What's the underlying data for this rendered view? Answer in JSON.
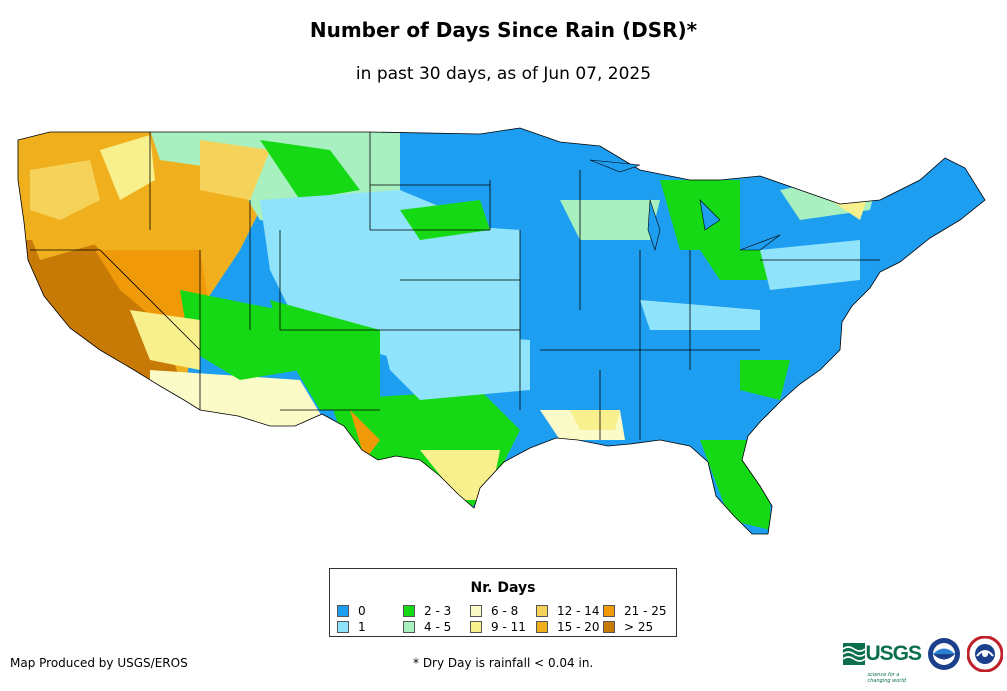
{
  "title": "Number of Days Since Rain (DSR)*",
  "subtitle": "in past 30 days, as of Jun 07, 2025",
  "legend": {
    "title": "Nr. Days",
    "items": [
      {
        "label": "0",
        "color": "#1e9ef0"
      },
      {
        "label": "1",
        "color": "#8fe3fa"
      },
      {
        "label": "2 - 3",
        "color": "#15d915"
      },
      {
        "label": "4 - 5",
        "color": "#a8f0c0"
      },
      {
        "label": "6 - 8",
        "color": "#fbfbc8"
      },
      {
        "label": "9 - 11",
        "color": "#f8f08c"
      },
      {
        "label": "12 - 14",
        "color": "#f5d35a"
      },
      {
        "label": "15 - 20",
        "color": "#f0b01e"
      },
      {
        "label": "21 - 25",
        "color": "#f09a0a"
      },
      {
        "label": "> 25",
        "color": "#c77a06"
      }
    ]
  },
  "credit": "Map Produced by USGS/EROS",
  "footnote": "* Dry Day is rainfall < 0.04 in.",
  "logos": {
    "usgs_text": "USGS",
    "usgs_tagline": "science for a changing world"
  }
}
